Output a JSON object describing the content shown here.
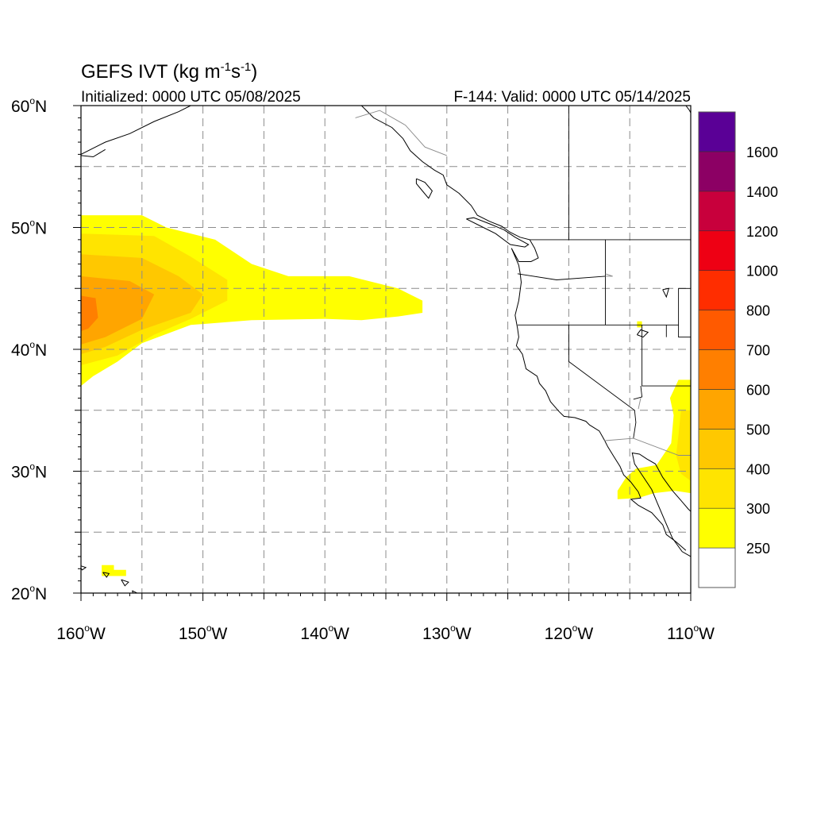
{
  "title": {
    "main": "GEFS IVT (kg m",
    "unit_exp1": "-1",
    "unit_mid": "s",
    "unit_exp2": "-1",
    "unit_close": ")"
  },
  "subtitle": {
    "left": "Initialized: 0000 UTC 05/08/2025",
    "right": "F-144: Valid: 0000 UTC 05/14/2025"
  },
  "map": {
    "lon_range": [
      -160,
      -110
    ],
    "lat_range": [
      20,
      60
    ],
    "lat_ticks": [
      {
        "value": 60,
        "label": "60",
        "suffix": "N"
      },
      {
        "value": 50,
        "label": "50",
        "suffix": "N"
      },
      {
        "value": 40,
        "label": "40",
        "suffix": "N"
      },
      {
        "value": 30,
        "label": "30",
        "suffix": "N"
      },
      {
        "value": 20,
        "label": "20",
        "suffix": "N"
      }
    ],
    "lon_ticks": [
      {
        "value": -160,
        "label": "160",
        "suffix": "W"
      },
      {
        "value": -150,
        "label": "150",
        "suffix": "W"
      },
      {
        "value": -140,
        "label": "140",
        "suffix": "W"
      },
      {
        "value": -130,
        "label": "130",
        "suffix": "W"
      },
      {
        "value": -120,
        "label": "120",
        "suffix": "W"
      },
      {
        "value": -110,
        "label": "110",
        "suffix": "W"
      }
    ],
    "gridlines": "dashed every 5 degrees"
  },
  "colorbar": {
    "levels": [
      {
        "label": "",
        "color": "#ffffff"
      },
      {
        "label": "250",
        "color": "#ffff00"
      },
      {
        "label": "300",
        "color": "#ffe400"
      },
      {
        "label": "400",
        "color": "#ffc800"
      },
      {
        "label": "500",
        "color": "#ffa500"
      },
      {
        "label": "600",
        "color": "#ff7f00"
      },
      {
        "label": "700",
        "color": "#ff5a00"
      },
      {
        "label": "800",
        "color": "#ff2d00"
      },
      {
        "label": "1000",
        "color": "#ee0014"
      },
      {
        "label": "1200",
        "color": "#c8003c"
      },
      {
        "label": "1400",
        "color": "#8c0064"
      },
      {
        "label": "1600",
        "color": "#5a0096"
      }
    ]
  },
  "ivt_regions": [
    {
      "name": "atmospheric-river",
      "level_index": 1,
      "polygon": [
        [
          -160,
          51
        ],
        [
          -155,
          51
        ],
        [
          -153,
          50
        ],
        [
          -149,
          49
        ],
        [
          -146,
          47
        ],
        [
          -143,
          46
        ],
        [
          -138,
          46
        ],
        [
          -134,
          45
        ],
        [
          -132,
          44
        ],
        [
          -132,
          43
        ],
        [
          -134,
          42.7
        ],
        [
          -137,
          42.4
        ],
        [
          -140,
          42.5
        ],
        [
          -146,
          42.4
        ],
        [
          -151,
          42
        ],
        [
          -155,
          40.5
        ],
        [
          -157,
          39
        ],
        [
          -159,
          37.8
        ],
        [
          -160,
          37
        ]
      ]
    },
    {
      "name": "atmospheric-river",
      "level_index": 2,
      "polygon": [
        [
          -160,
          49.5
        ],
        [
          -154,
          49.3
        ],
        [
          -151,
          47.6
        ],
        [
          -148,
          45.7
        ],
        [
          -148,
          44
        ],
        [
          -151,
          42.5
        ],
        [
          -154,
          41.2
        ],
        [
          -157,
          39.5
        ],
        [
          -160,
          38.7
        ]
      ]
    },
    {
      "name": "atmospheric-river",
      "level_index": 3,
      "polygon": [
        [
          -160,
          47.8
        ],
        [
          -155,
          47.5
        ],
        [
          -152,
          46
        ],
        [
          -150,
          44.5
        ],
        [
          -151,
          43
        ],
        [
          -155,
          41.6
        ],
        [
          -158,
          40.2
        ],
        [
          -160,
          39.6
        ]
      ]
    },
    {
      "name": "atmospheric-river",
      "level_index": 4,
      "polygon": [
        [
          -160,
          46
        ],
        [
          -156,
          45.6
        ],
        [
          -154,
          44.5
        ],
        [
          -155,
          42.5
        ],
        [
          -158,
          41
        ],
        [
          -160,
          40.4
        ]
      ]
    },
    {
      "name": "atmospheric-river",
      "level_index": 5,
      "polygon": [
        [
          -160,
          44.4
        ],
        [
          -158.8,
          44.2
        ],
        [
          -158.6,
          42.6
        ],
        [
          -159.4,
          41.7
        ],
        [
          -160,
          41.5
        ]
      ]
    },
    {
      "name": "baja-moisture",
      "level_index": 1,
      "polygon": [
        [
          -111,
          37.5
        ],
        [
          -110,
          37.5
        ],
        [
          -110,
          28.2
        ],
        [
          -111.3,
          28.4
        ],
        [
          -113,
          28.2
        ],
        [
          -114.3,
          27.8
        ],
        [
          -116,
          27.7
        ],
        [
          -116,
          28.4
        ],
        [
          -115.3,
          29.5
        ],
        [
          -114.5,
          30.2
        ],
        [
          -112.8,
          30.5
        ],
        [
          -111.6,
          32.3
        ],
        [
          -111.4,
          34.6
        ],
        [
          -111.7,
          36
        ]
      ]
    },
    {
      "name": "baja-moisture",
      "level_index": 2,
      "polygon": [
        [
          -110.8,
          35
        ],
        [
          -110,
          35
        ],
        [
          -110,
          29.2
        ],
        [
          -110.8,
          29.8
        ],
        [
          -111.2,
          31.3
        ],
        [
          -111,
          33
        ]
      ]
    },
    {
      "name": "hawaii-moisture",
      "level_index": 1,
      "polygon": [
        [
          -158.3,
          22.3
        ],
        [
          -157.3,
          22.3
        ],
        [
          -157.3,
          21.9
        ],
        [
          -156.3,
          21.9
        ],
        [
          -156.3,
          21.4
        ],
        [
          -158.3,
          21.4
        ]
      ]
    },
    {
      "name": "nevada-speck",
      "level_index": 1,
      "polygon": [
        [
          -114.4,
          42.3
        ],
        [
          -114,
          42.3
        ],
        [
          -114,
          41.8
        ],
        [
          -114.4,
          41.8
        ]
      ]
    }
  ],
  "coastlines": [
    [
      [
        -160,
        56
      ],
      [
        -158,
        57
      ],
      [
        -156,
        57.7
      ],
      [
        -154,
        58.7
      ],
      [
        -152,
        59.5
      ],
      [
        -151,
        60
      ]
    ],
    [
      [
        -160,
        55.9
      ],
      [
        -159,
        55.8
      ],
      [
        -158,
        56.4
      ]
    ],
    [
      [
        -147,
        60
      ],
      [
        -146,
        60.7
      ]
    ],
    [
      [
        -137,
        60
      ],
      [
        -136,
        59
      ],
      [
        -134.5,
        58.2
      ],
      [
        -133.6,
        57.3
      ],
      [
        -133,
        56.3
      ],
      [
        -132,
        55.4
      ],
      [
        -131,
        54.7
      ],
      [
        -130.3,
        54.3
      ],
      [
        -130,
        53.5
      ],
      [
        -129,
        52.8
      ],
      [
        -128,
        51.8
      ],
      [
        -127.5,
        51
      ],
      [
        -126.5,
        50.5
      ],
      [
        -125.5,
        50.1
      ],
      [
        -124.8,
        49.6
      ],
      [
        -124,
        49.2
      ],
      [
        -123.2,
        49
      ],
      [
        -122.8,
        48.3
      ],
      [
        -122.5,
        47.5
      ],
      [
        -123.1,
        47.2
      ],
      [
        -124.1,
        47.2
      ],
      [
        -124.7,
        48.3
      ],
      [
        -124.1,
        46.9
      ],
      [
        -124,
        46.3
      ],
      [
        -123.9,
        45.5
      ],
      [
        -124.1,
        44
      ],
      [
        -124.4,
        42.8
      ],
      [
        -124.2,
        41.7
      ],
      [
        -124.1,
        41
      ],
      [
        -124.3,
        40.3
      ],
      [
        -123.8,
        39.6
      ],
      [
        -123.5,
        38.4
      ],
      [
        -122.6,
        37.8
      ],
      [
        -122.4,
        37.2
      ],
      [
        -121.9,
        36.6
      ],
      [
        -121.5,
        35.7
      ],
      [
        -120.8,
        34.9
      ],
      [
        -120.4,
        34.5
      ],
      [
        -119.5,
        34.4
      ],
      [
        -118.6,
        34.1
      ],
      [
        -118.3,
        33.8
      ],
      [
        -117.5,
        33.3
      ],
      [
        -117.1,
        32.6
      ],
      [
        -116.8,
        32
      ],
      [
        -116.3,
        31.2
      ],
      [
        -115.8,
        30.4
      ],
      [
        -115.5,
        29.7
      ],
      [
        -114.9,
        29.1
      ],
      [
        -114.3,
        28.3
      ],
      [
        -114.1,
        27.8
      ],
      [
        -114.9,
        27.7
      ],
      [
        -114.3,
        27.2
      ],
      [
        -113.2,
        26.6
      ],
      [
        -112.3,
        25.6
      ],
      [
        -112,
        24.8
      ],
      [
        -111.2,
        24.2
      ],
      [
        -110.4,
        23.5
      ]
    ],
    [
      [
        -110,
        23
      ],
      [
        -110.7,
        23.4
      ],
      [
        -111.5,
        24.5
      ],
      [
        -112.1,
        25.9
      ],
      [
        -112.7,
        27.3
      ],
      [
        -113.2,
        28.5
      ],
      [
        -114,
        29.7
      ],
      [
        -114.6,
        30.6
      ],
      [
        -114.8,
        31.5
      ],
      [
        -114.2,
        31.4
      ],
      [
        -113.6,
        31
      ],
      [
        -112.9,
        30.6
      ],
      [
        -112.3,
        29.5
      ],
      [
        -111.5,
        28.4
      ],
      [
        -110.8,
        27.6
      ],
      [
        -110.2,
        26.9
      ],
      [
        -110,
        26.7
      ]
    ],
    [
      [
        -132.5,
        54
      ],
      [
        -131.8,
        53.7
      ],
      [
        -131.2,
        53
      ],
      [
        -131.5,
        52.4
      ],
      [
        -132,
        53
      ],
      [
        -132.5,
        53.6
      ],
      [
        -132.5,
        54
      ]
    ],
    [
      [
        -128.4,
        50.7
      ],
      [
        -127.2,
        50.1
      ],
      [
        -126,
        49.5
      ],
      [
        -124.8,
        48.6
      ],
      [
        -123.6,
        48.4
      ],
      [
        -123.3,
        48.6
      ],
      [
        -124.4,
        49.2
      ],
      [
        -125.3,
        49.8
      ],
      [
        -126.5,
        50.3
      ],
      [
        -127.8,
        50.8
      ],
      [
        -128.4,
        50.7
      ]
    ],
    [
      [
        -160.2,
        22.3
      ],
      [
        -159.6,
        22.1
      ],
      [
        -159.9,
        21.9
      ],
      [
        -160.2,
        22.3
      ]
    ],
    [
      [
        -158.2,
        21.7
      ],
      [
        -157.9,
        21.3
      ],
      [
        -157.7,
        21.6
      ],
      [
        -158.2,
        21.7
      ]
    ],
    [
      [
        -156.7,
        21.1
      ],
      [
        -156.1,
        20.9
      ],
      [
        -156.4,
        20.6
      ],
      [
        -156.7,
        21.1
      ]
    ],
    [
      [
        -155.8,
        20.2
      ],
      [
        -155,
        19.8
      ],
      [
        -155.5,
        19.4
      ],
      [
        -155.8,
        20.2
      ]
    ],
    [
      [
        -114.4,
        41.2
      ],
      [
        -113.9,
        41
      ],
      [
        -113.5,
        41.4
      ],
      [
        -114.1,
        41.6
      ],
      [
        -114.4,
        41.2
      ]
    ],
    [
      [
        -112.3,
        44.9
      ],
      [
        -112,
        44.3
      ],
      [
        -111.8,
        45
      ],
      [
        -112.3,
        44.9
      ]
    ],
    [
      [
        -110.4,
        60
      ],
      [
        -110.1,
        59.6
      ],
      [
        -110,
        59.4
      ]
    ]
  ],
  "borders": [
    [
      [
        -141,
        60
      ],
      [
        -141,
        60.3
      ]
    ],
    [
      [
        -123.2,
        49
      ],
      [
        -110,
        49
      ]
    ],
    [
      [
        -117,
        49
      ],
      [
        -117,
        44.4
      ]
    ],
    [
      [
        -124.2,
        46.2
      ],
      [
        -121,
        45.7
      ],
      [
        -117,
        46
      ]
    ],
    [
      [
        -124.2,
        42
      ],
      [
        -111,
        42
      ]
    ],
    [
      [
        -120,
        42
      ],
      [
        -120,
        39
      ],
      [
        -114.6,
        35
      ]
    ],
    [
      [
        -117,
        44.4
      ],
      [
        -117,
        42
      ]
    ],
    [
      [
        -114,
        42
      ],
      [
        -114,
        37
      ],
      [
        -110,
        37
      ]
    ],
    [
      [
        -114.6,
        35
      ],
      [
        -114.5,
        34
      ],
      [
        -114.7,
        32.7
      ]
    ],
    [
      [
        -111,
        45
      ],
      [
        -110,
        45
      ]
    ],
    [
      [
        -111,
        45
      ],
      [
        -111,
        41
      ],
      [
        -110,
        41
      ]
    ],
    [
      [
        -112,
        42
      ],
      [
        -112,
        41
      ]
    ],
    [
      [
        -114.1,
        37
      ],
      [
        -114,
        36.1
      ],
      [
        -114.7,
        35.9
      ]
    ],
    [
      [
        -120,
        60
      ],
      [
        -120,
        49
      ]
    ]
  ],
  "borders_light": [
    [
      [
        -117.1,
        32.5
      ],
      [
        -114.7,
        32.7
      ],
      [
        -111,
        31.3
      ],
      [
        -108,
        31.3
      ]
    ],
    [
      [
        -114.1,
        36
      ],
      [
        -114.3,
        35.1
      ]
    ],
    [
      [
        -137.5,
        59
      ],
      [
        -135.5,
        59.6
      ],
      [
        -133.4,
        58.4
      ],
      [
        -131.8,
        56.6
      ],
      [
        -130,
        55.9
      ]
    ],
    [
      [
        -117,
        46
      ],
      [
        -116.4,
        46
      ],
      [
        -117,
        46.2
      ]
    ]
  ]
}
